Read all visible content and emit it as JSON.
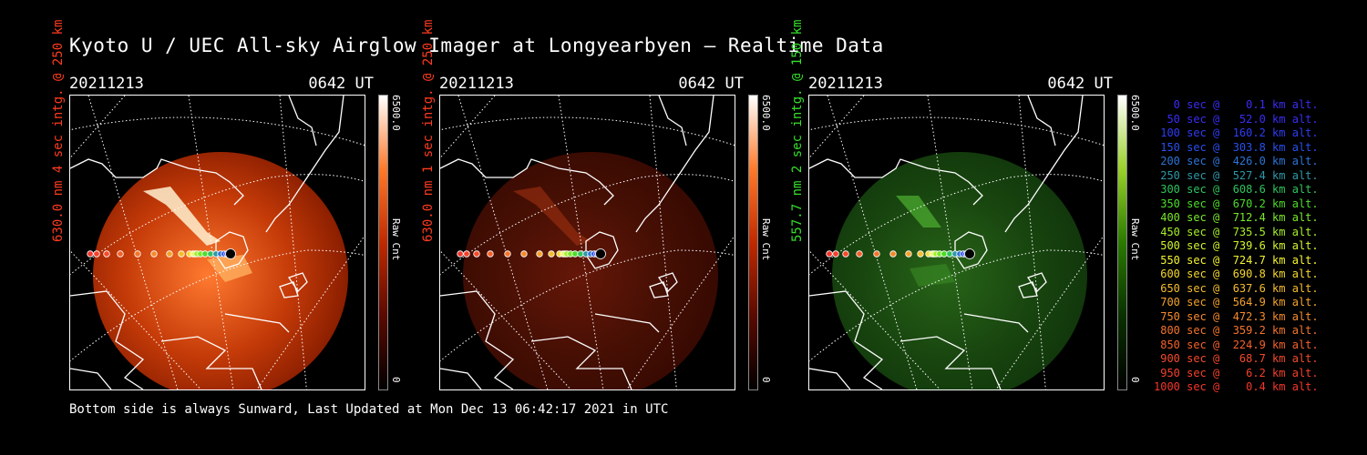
{
  "title": "Kyoto U / UEC All-sky Airglow Imager at Longyearbyen — Realtime Data",
  "panels": [
    {
      "date": "20211213",
      "time": "0642 UT",
      "label": "630.0 nm 4 sec intg. @ 250 km",
      "label_color": "#ff3b1f",
      "color_max": "6500.0",
      "color_min": "0",
      "color_unit": "Raw Cnt",
      "colormap": "red-strong"
    },
    {
      "date": "20211213",
      "time": "0642 UT",
      "label": "630.0 nm 1 sec intg. @ 250 km",
      "label_color": "#ff3b1f",
      "color_max": "6500.0",
      "color_min": "0",
      "color_unit": "Raw Cnt",
      "colormap": "red-dim"
    },
    {
      "date": "20211213",
      "time": "0642 UT",
      "label": "557.7 nm 2 sec intg. @ 150 km",
      "label_color": "#34e02a",
      "color_max": "6500.0",
      "color_min": "0",
      "color_unit": "Raw Cnt",
      "colormap": "green"
    }
  ],
  "footer": "Bottom side is always Sunward, Last Updated at Mon Dec 13 06:42:17 2021 in UTC",
  "legend": [
    {
      "text": "   0 sec @    0.1 km alt.",
      "color": "#3a2cf5"
    },
    {
      "text": "  50 sec @   52.0 km alt.",
      "color": "#3a2cf5"
    },
    {
      "text": " 100 sec @  160.2 km alt.",
      "color": "#2f3cf5"
    },
    {
      "text": " 150 sec @  303.8 km alt.",
      "color": "#2850f0"
    },
    {
      "text": " 200 sec @  426.0 km alt.",
      "color": "#2e74d8"
    },
    {
      "text": " 250 sec @  527.4 km alt.",
      "color": "#2e98a8"
    },
    {
      "text": " 300 sec @  608.6 km alt.",
      "color": "#2fc45e"
    },
    {
      "text": " 350 sec @  670.2 km alt.",
      "color": "#4ddc2a"
    },
    {
      "text": " 400 sec @  712.4 km alt.",
      "color": "#7ae82a"
    },
    {
      "text": " 450 sec @  735.5 km alt.",
      "color": "#a6f02a"
    },
    {
      "text": " 500 sec @  739.6 km alt.",
      "color": "#d0f52d"
    },
    {
      "text": " 550 sec @  724.7 km alt.",
      "color": "#f5f530"
    },
    {
      "text": " 600 sec @  690.8 km alt.",
      "color": "#f5d82e"
    },
    {
      "text": " 650 sec @  637.6 km alt.",
      "color": "#f5bd2d"
    },
    {
      "text": " 700 sec @  564.9 km alt.",
      "color": "#f5a22c"
    },
    {
      "text": " 750 sec @  472.3 km alt.",
      "color": "#f58a2b"
    },
    {
      "text": " 800 sec @  359.2 km alt.",
      "color": "#f5742b"
    },
    {
      "text": " 850 sec @  224.9 km alt.",
      "color": "#f5602b"
    },
    {
      "text": " 900 sec @   68.7 km alt.",
      "color": "#f54a2b"
    },
    {
      "text": " 950 sec @    6.2 km alt.",
      "color": "#f5402b"
    },
    {
      "text": "1000 sec @    0.4 km alt.",
      "color": "#f5352b"
    }
  ]
}
